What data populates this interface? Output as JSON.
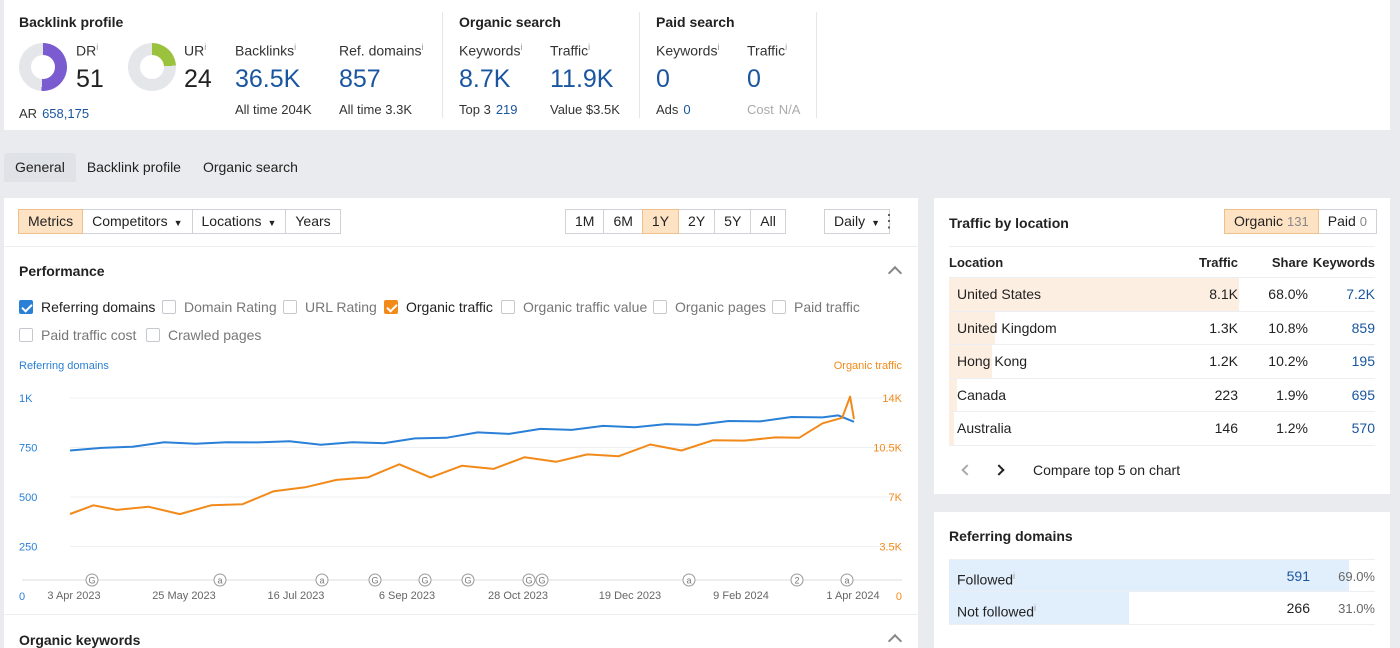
{
  "summary": {
    "backlink_profile": {
      "title": "Backlink profile",
      "dr": {
        "label": "DR",
        "value": "51",
        "fill": 0.51,
        "color": "#7a5bd0"
      },
      "ur": {
        "label": "UR",
        "value": "24",
        "fill": 0.24,
        "color": "#9ac23c"
      },
      "ar_label": "AR",
      "ar_value": "658,175",
      "backlinks": {
        "label": "Backlinks",
        "value": "36.5K",
        "sub_label": "All time",
        "sub_value": "204K"
      },
      "ref_domains": {
        "label": "Ref. domains",
        "value": "857",
        "sub_label": "All time",
        "sub_value": "3.3K"
      }
    },
    "organic_search": {
      "title": "Organic search",
      "keywords": {
        "label": "Keywords",
        "value": "8.7K",
        "sub_label": "Top 3",
        "sub_value": "219"
      },
      "traffic": {
        "label": "Traffic",
        "value": "11.9K",
        "sub_label": "Value",
        "sub_value": "$3.5K"
      }
    },
    "paid_search": {
      "title": "Paid search",
      "keywords": {
        "label": "Keywords",
        "value": "0",
        "sub_label": "Ads",
        "sub_value": "0"
      },
      "traffic": {
        "label": "Traffic",
        "value": "0",
        "sub_label": "Cost",
        "sub_value": "N/A"
      }
    },
    "info_mark": "i"
  },
  "tabs": [
    "General",
    "Backlink profile",
    "Organic search"
  ],
  "toolbar": {
    "metrics": "Metrics",
    "competitors": "Competitors",
    "locations": "Locations",
    "years": "Years",
    "ranges": [
      "1M",
      "6M",
      "1Y",
      "2Y",
      "5Y",
      "All"
    ],
    "active_range": "1Y",
    "interval": "Daily",
    "caret": "▼",
    "more": "⋮"
  },
  "performance": {
    "title": "Performance",
    "checkboxes": [
      {
        "label": "Referring domains",
        "checked": true,
        "color": "#2a80d6"
      },
      {
        "label": "Domain Rating",
        "checked": false
      },
      {
        "label": "URL Rating",
        "checked": false
      },
      {
        "label": "Organic traffic",
        "checked": true,
        "color": "#f28a1a"
      },
      {
        "label": "Organic traffic value",
        "checked": false
      },
      {
        "label": "Organic pages",
        "checked": false
      },
      {
        "label": "Paid traffic",
        "checked": false
      },
      {
        "label": "Paid traffic cost",
        "checked": false
      },
      {
        "label": "Crawled pages",
        "checked": false
      }
    ]
  },
  "chart_data": {
    "type": "line",
    "left_axis_label": "Referring domains",
    "right_axis_label": "Organic traffic",
    "left_ticks": [
      "1K",
      "750",
      "500",
      "250",
      "0"
    ],
    "right_ticks": [
      "14K",
      "10.5K",
      "7K",
      "3.5K",
      "0"
    ],
    "left_ylim": [
      0,
      1000
    ],
    "right_ylim": [
      0,
      14000
    ],
    "x_labels": [
      "3 Apr 2023",
      "25 May 2023",
      "16 Jul 2023",
      "6 Sep 2023",
      "28 Oct 2023",
      "19 Dec 2023",
      "9 Feb 2024",
      "1 Apr 2024"
    ],
    "annotations": [
      "G",
      "a",
      "a",
      "G",
      "G",
      "G",
      "G",
      "G",
      "a",
      "2",
      "a"
    ],
    "series": [
      {
        "name": "Referring domains",
        "axis": "left",
        "color": "#2a80d6",
        "x": [
          0,
          0.04,
          0.08,
          0.12,
          0.16,
          0.2,
          0.24,
          0.28,
          0.32,
          0.36,
          0.4,
          0.44,
          0.48,
          0.52,
          0.56,
          0.6,
          0.64,
          0.68,
          0.72,
          0.76,
          0.8,
          0.84,
          0.88,
          0.92,
          0.96,
          0.98,
          1
        ],
        "values": [
          735,
          742,
          760,
          770,
          775,
          770,
          782,
          775,
          770,
          770,
          778,
          790,
          805,
          820,
          825,
          838,
          845,
          853,
          858,
          862,
          870,
          878,
          888,
          898,
          902,
          912,
          880
        ]
      },
      {
        "name": "Organic traffic",
        "axis": "right",
        "color": "#f28a1a",
        "x": [
          0,
          0.03,
          0.06,
          0.1,
          0.14,
          0.18,
          0.22,
          0.26,
          0.3,
          0.34,
          0.38,
          0.42,
          0.46,
          0.5,
          0.54,
          0.58,
          0.62,
          0.66,
          0.7,
          0.74,
          0.78,
          0.82,
          0.86,
          0.9,
          0.93,
          0.96,
          0.985,
          0.995,
          1
        ],
        "values": [
          5800,
          6200,
          6300,
          6100,
          6000,
          6200,
          6700,
          7200,
          7900,
          8000,
          8600,
          9100,
          8600,
          9000,
          9200,
          9600,
          9700,
          9800,
          10100,
          10500,
          10500,
          10800,
          11200,
          11000,
          11400,
          12000,
          12600,
          14100,
          12500
        ]
      }
    ]
  },
  "organic_keywords": {
    "title": "Organic keywords"
  },
  "traffic_by_location": {
    "title": "Traffic by location",
    "segments": [
      {
        "label": "Organic",
        "count": "131",
        "active": true
      },
      {
        "label": "Paid",
        "count": "0",
        "active": false
      }
    ],
    "columns": [
      "Location",
      "Traffic",
      "Share",
      "Keywords"
    ],
    "rows": [
      {
        "location": "United States",
        "traffic": "8.1K",
        "share": "68.0%",
        "keywords": "7.2K",
        "pct": 68.0
      },
      {
        "location": "United Kingdom",
        "traffic": "1.3K",
        "share": "10.8%",
        "keywords": "859",
        "pct": 10.8
      },
      {
        "location": "Hong Kong",
        "traffic": "1.2K",
        "share": "10.2%",
        "keywords": "195",
        "pct": 10.2
      },
      {
        "location": "Canada",
        "traffic": "223",
        "share": "1.9%",
        "keywords": "695",
        "pct": 1.9
      },
      {
        "location": "Australia",
        "traffic": "146",
        "share": "1.2%",
        "keywords": "570",
        "pct": 1.2
      }
    ],
    "compare_label": "Compare top 5 on chart"
  },
  "referring_domains": {
    "title": "Referring domains",
    "rows": [
      {
        "label": "Followed",
        "value": "591",
        "share": "69.0%",
        "pct": 69.0
      },
      {
        "label": "Not followed",
        "value": "266",
        "share": "31.0%",
        "pct": 31.0
      }
    ]
  }
}
